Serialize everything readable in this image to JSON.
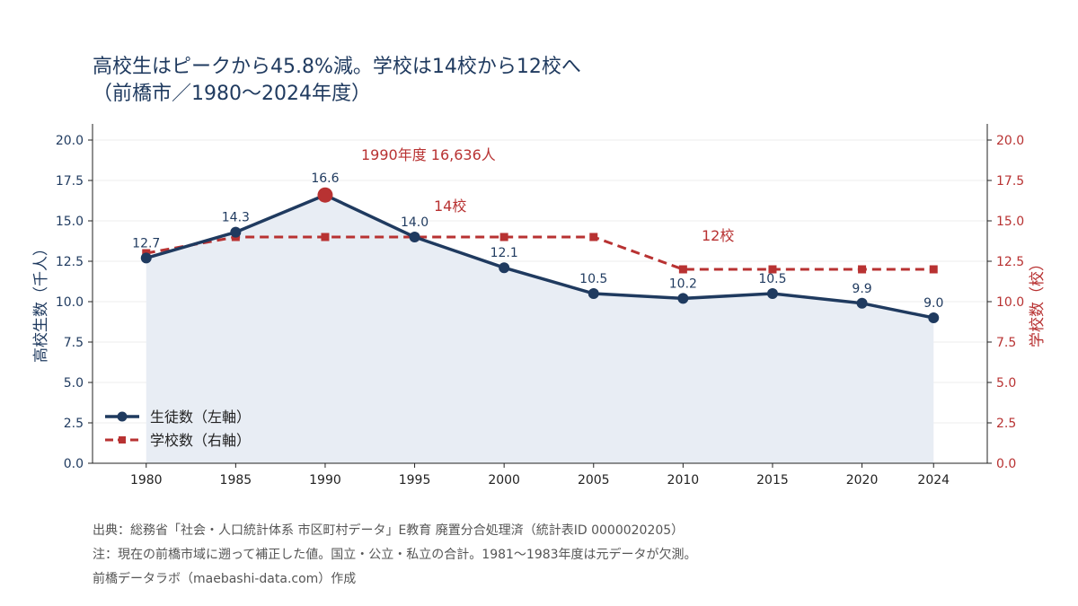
{
  "colors": {
    "students": "#1f3a5f",
    "schools": "#b83232",
    "area": "#e8edf4",
    "peak": "#b83232",
    "axis": "#222222",
    "grid": "#eeeeee"
  },
  "title": {
    "line1": "高校生はピークから45.8%減。学校は14校から12校へ",
    "line2": "（前橋市／1980～2024年度）"
  },
  "chart_data": {
    "type": "line",
    "x": [
      1980,
      1985,
      1990,
      1995,
      2000,
      2005,
      2010,
      2015,
      2020,
      2024
    ],
    "xlim": [
      1977,
      2027
    ],
    "x_ticks": [
      "1980",
      "1985",
      "1990",
      "1995",
      "2000",
      "2005",
      "2010",
      "2015",
      "2020",
      "2024"
    ],
    "ylim_left": [
      0,
      21
    ],
    "ylim_right": [
      0,
      21
    ],
    "y_ticks_left": [
      "0.0",
      "2.5",
      "5.0",
      "7.5",
      "10.0",
      "12.5",
      "15.0",
      "17.5",
      "20.0"
    ],
    "y_ticks_right": [
      "0.0",
      "2.5",
      "5.0",
      "7.5",
      "10.0",
      "12.5",
      "15.0",
      "17.5",
      "20.0"
    ],
    "ylabel_left": "高校生数（千人）",
    "ylabel_right": "学校数（校）",
    "grid": true,
    "legend_position": "bottom-left",
    "series": [
      {
        "name": "生徒数（左軸）",
        "axis": "left",
        "style": "solid-circle",
        "values": [
          12.7,
          14.3,
          16.6,
          14.0,
          12.1,
          10.5,
          10.2,
          10.5,
          9.9,
          9.0
        ],
        "labels": [
          "12.7",
          "14.3",
          "16.6",
          "14.0",
          "12.1",
          "10.5",
          "10.2",
          "10.5",
          "9.9",
          "9.0"
        ]
      },
      {
        "name": "学校数（右軸）",
        "axis": "right",
        "style": "dashed-square",
        "values": [
          13,
          14,
          14,
          14,
          14,
          14,
          12,
          12,
          12,
          12
        ]
      }
    ],
    "annotations": {
      "peak": "1990年度 16,636人",
      "schools_before": "14校",
      "schools_after": "12校"
    }
  },
  "footer": {
    "source": "出典：総務省「社会・人口統計体系 市区町村データ」E教育 廃置分合処理済（統計表ID 0000020205）",
    "note": "注：現在の前橋市域に遡って補正した値。国立・公立・私立の合計。1981～1983年度は元データが欠測。",
    "credit": "前橋データラボ（maebashi-data.com）作成"
  }
}
